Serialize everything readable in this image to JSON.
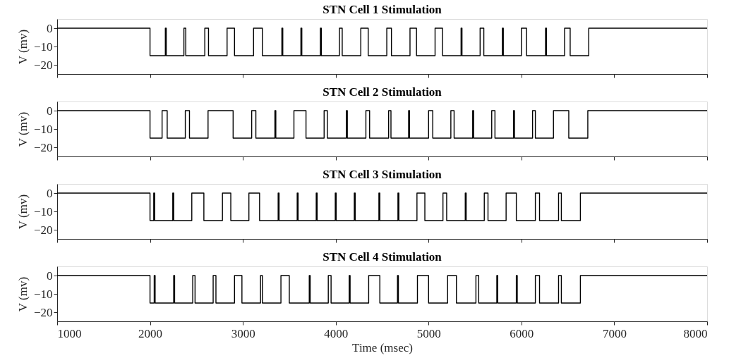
{
  "chart_data": [
    {
      "type": "step",
      "title": "STN Cell 1 Stimulation",
      "ylabel": "V (mv)",
      "xlim": [
        1000,
        8000
      ],
      "xticks": [
        1000,
        2000,
        3000,
        4000,
        5000,
        6000,
        7000,
        8000
      ],
      "ylim": [
        -25,
        5
      ],
      "yticks": [
        -20,
        -10,
        0
      ],
      "tick_labels": "y",
      "grid": false,
      "marker": "none",
      "line_style": "solid",
      "x": [
        1000,
        2000,
        2165,
        2175,
        2365,
        2385,
        2590,
        2630,
        2830,
        2910,
        3115,
        3210,
        3420,
        3430,
        3625,
        3635,
        3835,
        3845,
        4040,
        4070,
        4270,
        4350,
        4550,
        4600,
        4800,
        4870,
        5070,
        5150,
        5350,
        5360,
        5555,
        5595,
        5795,
        5805,
        6000,
        6055,
        6260,
        6270,
        6465,
        6525,
        6725,
        8000
      ],
      "series": [
        {
          "color": "#000000",
          "values": [
            0,
            -15,
            0,
            -15,
            0,
            -15,
            0,
            -15,
            0,
            -15,
            0,
            -15,
            0,
            -15,
            0,
            -15,
            0,
            -15,
            0,
            -15,
            0,
            -15,
            0,
            -15,
            0,
            -15,
            0,
            -15,
            0,
            -15,
            0,
            -15,
            0,
            -15,
            0,
            -15,
            0,
            -15,
            0,
            -15,
            0,
            0
          ]
        }
      ]
    },
    {
      "type": "step",
      "title": "STN Cell 2 Stimulation",
      "ylabel": "V (mv)",
      "xlim": [
        1000,
        8000
      ],
      "xticks": [
        1000,
        2000,
        3000,
        4000,
        5000,
        6000,
        7000,
        8000
      ],
      "ylim": [
        -25,
        5
      ],
      "yticks": [
        -20,
        -10,
        0
      ],
      "tick_labels": "y",
      "grid": false,
      "marker": "none",
      "line_style": "solid",
      "x": [
        1000,
        2000,
        2130,
        2185,
        2380,
        2425,
        2625,
        2895,
        3095,
        3140,
        3345,
        3355,
        3550,
        3680,
        3875,
        3910,
        4115,
        4125,
        4325,
        4365,
        4570,
        4595,
        4785,
        4795,
        5000,
        5045,
        5240,
        5275,
        5475,
        5485,
        5680,
        5715,
        5915,
        5925,
        6120,
        6150,
        6345,
        6510,
        6715,
        8000
      ],
      "series": [
        {
          "color": "#000000",
          "values": [
            0,
            -15,
            0,
            -15,
            0,
            -15,
            0,
            -15,
            0,
            -15,
            0,
            -15,
            0,
            -15,
            0,
            -15,
            0,
            -15,
            0,
            -15,
            0,
            -15,
            0,
            -15,
            0,
            -15,
            0,
            -15,
            0,
            -15,
            0,
            -15,
            0,
            -15,
            0,
            -15,
            0,
            -15,
            0,
            0
          ]
        }
      ]
    },
    {
      "type": "step",
      "title": "STN Cell 3 Stimulation",
      "ylabel": "V (mv)",
      "xlim": [
        1000,
        8000
      ],
      "xticks": [
        1000,
        2000,
        3000,
        4000,
        5000,
        6000,
        7000,
        8000
      ],
      "ylim": [
        -25,
        5
      ],
      "yticks": [
        -20,
        -10,
        0
      ],
      "tick_labels": "y",
      "grid": false,
      "marker": "none",
      "line_style": "solid",
      "x": [
        1000,
        2000,
        2040,
        2050,
        2245,
        2255,
        2450,
        2580,
        2780,
        2870,
        3065,
        3180,
        3380,
        3390,
        3585,
        3595,
        3790,
        3800,
        3995,
        4005,
        4200,
        4210,
        4465,
        4475,
        4670,
        4680,
        4875,
        4960,
        5155,
        5195,
        5395,
        5405,
        5600,
        5640,
        5835,
        5945,
        6150,
        6195,
        6400,
        6430,
        6635,
        8000
      ],
      "series": [
        {
          "color": "#000000",
          "values": [
            0,
            -15,
            0,
            -15,
            0,
            -15,
            0,
            -15,
            0,
            -15,
            0,
            -15,
            0,
            -15,
            0,
            -15,
            0,
            -15,
            0,
            -15,
            0,
            -15,
            0,
            -15,
            0,
            -15,
            0,
            -15,
            0,
            -15,
            0,
            -15,
            0,
            -15,
            0,
            -15,
            0,
            -15,
            0,
            -15,
            0,
            0
          ]
        }
      ]
    },
    {
      "type": "step",
      "title": "STN Cell 4 Stimulation",
      "ylabel": "V (mv)",
      "xlabel": "Time (msec)",
      "xlim": [
        1000,
        8000
      ],
      "xticks": [
        1000,
        2000,
        3000,
        4000,
        5000,
        6000,
        7000,
        8000
      ],
      "ylim": [
        -25,
        5
      ],
      "yticks": [
        -20,
        -10,
        0
      ],
      "grid": false,
      "marker": "none",
      "line_style": "solid",
      "x": [
        1000,
        2000,
        2045,
        2055,
        2255,
        2265,
        2460,
        2485,
        2680,
        2710,
        2910,
        2990,
        3190,
        3210,
        3410,
        3500,
        3715,
        3725,
        3920,
        3950,
        4145,
        4155,
        4355,
        4475,
        4665,
        4675,
        4880,
        5000,
        5205,
        5300,
        5510,
        5540,
        5735,
        5745,
        5945,
        5955,
        6150,
        6195,
        6400,
        6430,
        6635,
        8000
      ],
      "series": [
        {
          "color": "#000000",
          "values": [
            0,
            -15,
            0,
            -15,
            0,
            -15,
            0,
            -15,
            0,
            -15,
            0,
            -15,
            0,
            -15,
            0,
            -15,
            0,
            -15,
            0,
            -15,
            0,
            -15,
            0,
            -15,
            0,
            -15,
            0,
            -15,
            0,
            -15,
            0,
            -15,
            0,
            -15,
            0,
            -15,
            0,
            -15,
            0,
            -15,
            0,
            0
          ]
        }
      ]
    }
  ]
}
